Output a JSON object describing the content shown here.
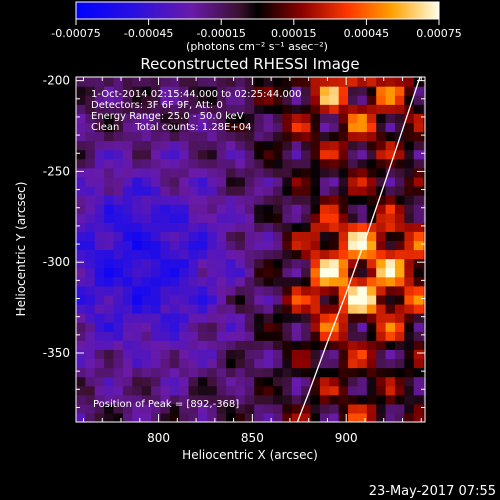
{
  "colorbar": {
    "ticks": [
      "-0.00075",
      "-0.00045",
      "-0.00015",
      "0.00015",
      "0.00045",
      "0.00075"
    ],
    "units": "(photons cm⁻² s⁻¹ asec⁻²)",
    "range": [
      -0.00075,
      0.00075
    ]
  },
  "chart_data": {
    "type": "heatmap",
    "title": "Reconstructed RHESSI Image",
    "xlabel": "Heliocentric X (arcsec)",
    "ylabel": "Heliocentric Y (arcsec)",
    "xlim": [
      756,
      942
    ],
    "ylim": [
      -388,
      -198
    ],
    "xticks": [
      800,
      850,
      900
    ],
    "yticks": [
      -350,
      -300,
      -250,
      -200
    ],
    "annotations": [
      "1-Oct-2014 02:15:44.000 to 02:25:44.000",
      "Detectors: 3F 6F 9F, Att: 0",
      "Energy Range: 25.0 - 50.0 keV",
      "Clean     Total counts: 1.28E+04"
    ],
    "peak_label": "Position of Peak = [892,-368]",
    "peak": [
      892,
      -368
    ],
    "limb": [
      [
        874,
        -388
      ],
      [
        880,
        -372
      ],
      [
        890,
        -344
      ],
      [
        900,
        -317
      ],
      [
        910,
        -288
      ],
      [
        920,
        -258
      ],
      [
        930,
        -227
      ],
      [
        940,
        -196
      ]
    ],
    "note": "Clean map; bright emission band along the solar limb (x > 850 arcsec), dim purple/blue background to the east."
  },
  "timestamp": "23-May-2017 07:55"
}
